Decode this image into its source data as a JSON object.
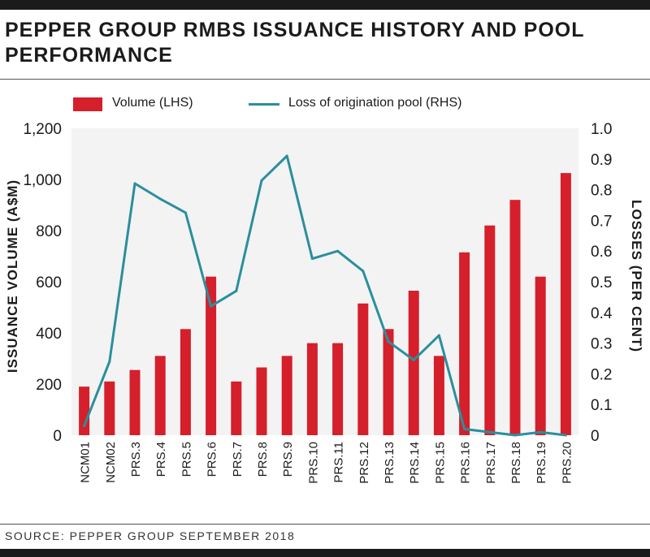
{
  "title": "PEPPER GROUP RMBS ISSUANCE HISTORY AND POOL PERFORMANCE",
  "source": "SOURCE: PEPPER GROUP SEPTEMBER 2018",
  "colors": {
    "bar": "#d51f2b",
    "line": "#2a8f9d",
    "plot_bg": "#f3f3f3"
  },
  "chart_data": {
    "type": "bar",
    "title": "PEPPER GROUP RMBS ISSUANCE HISTORY AND POOL PERFORMANCE",
    "categories": [
      "NCM01",
      "NCM02",
      "PRS.3",
      "PRS.4",
      "PRS.5",
      "PRS.6",
      "PRS.7",
      "PRS.8",
      "PRS.9",
      "PRS.10",
      "PRS.11",
      "PRS.12",
      "PRS.13",
      "PRS.14",
      "PRS.15",
      "PRS.16",
      "PRS.17",
      "PRS.18",
      "PRS.19",
      "PRS.20"
    ],
    "series": [
      {
        "name": "Volume (LHS)",
        "type": "bar",
        "axis": "left",
        "values": [
          190,
          210,
          255,
          310,
          415,
          620,
          210,
          265,
          310,
          360,
          360,
          515,
          415,
          565,
          310,
          715,
          820,
          920,
          620,
          1025
        ]
      },
      {
        "name": "Loss of origination pool (RHS)",
        "type": "line",
        "axis": "right",
        "values": [
          0.03,
          0.24,
          0.82,
          0.77,
          0.725,
          0.42,
          0.47,
          0.83,
          0.91,
          0.575,
          0.6,
          0.535,
          0.305,
          0.245,
          0.325,
          0.02,
          0.01,
          0.0,
          0.01,
          0.0
        ]
      }
    ],
    "ylabel_left": "ISSUANCE VOLUME (A$M)",
    "ylabel_right": "LOSSES (PER CENT)",
    "ylim_left": [
      0,
      1200
    ],
    "ylim_right": [
      0,
      1.0
    ],
    "yticks_left": [
      "0",
      "200",
      "400",
      "600",
      "800",
      "1,000",
      "1,200"
    ],
    "yticks_right": [
      "0",
      "0.1",
      "0.2",
      "0.3",
      "0.4",
      "0.5",
      "0.6",
      "0.7",
      "0.8",
      "0.9",
      "1.0"
    ],
    "grid": false,
    "legend_position": "top"
  }
}
